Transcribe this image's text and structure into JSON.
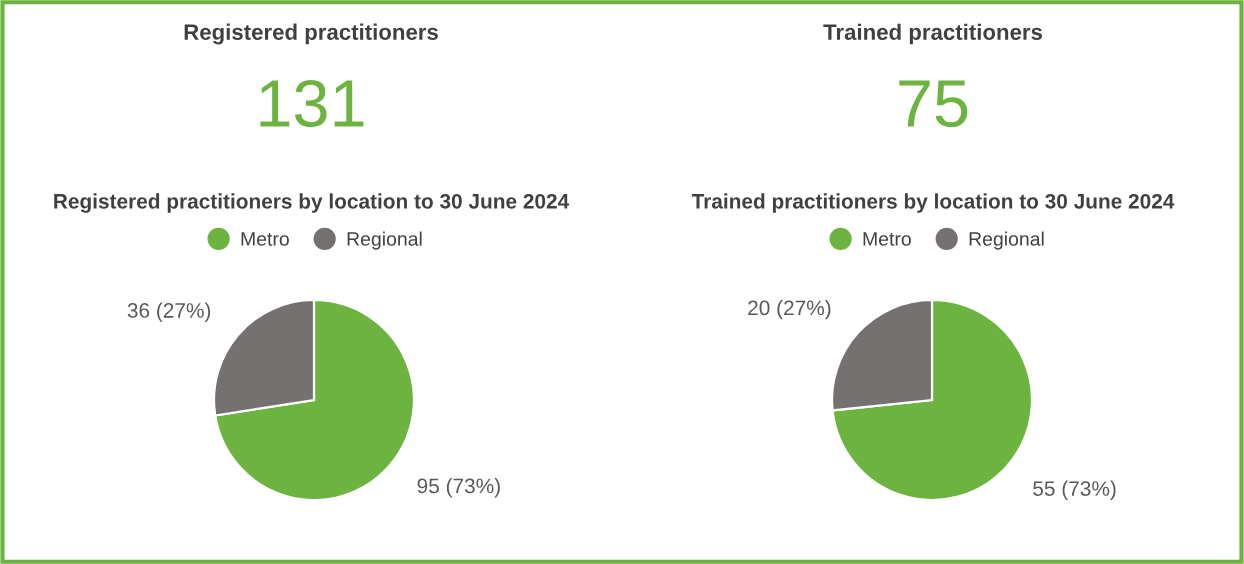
{
  "chart_data": [
    {
      "type": "other",
      "title": "Registered practitioners",
      "annotations": [
        "131"
      ]
    },
    {
      "type": "other",
      "title": "Trained practitioners",
      "annotations": [
        "75"
      ]
    },
    {
      "type": "pie",
      "title": "Registered practitioners by location to 30 June 2024",
      "categories": [
        "Metro",
        "Regional"
      ],
      "values": [
        95,
        36
      ],
      "colors": [
        "#6cb33f",
        "#767171"
      ],
      "value_labels": [
        "95 (73%)",
        "36 (27%)"
      ],
      "legend": "top"
    },
    {
      "type": "pie",
      "title": "Trained practitioners by location to 30 June 2024",
      "categories": [
        "Metro",
        "Regional"
      ],
      "values": [
        55,
        20
      ],
      "colors": [
        "#6cb33f",
        "#767171"
      ],
      "value_labels": [
        "55 (73%)",
        "20 (27%)"
      ],
      "legend": "top"
    }
  ]
}
